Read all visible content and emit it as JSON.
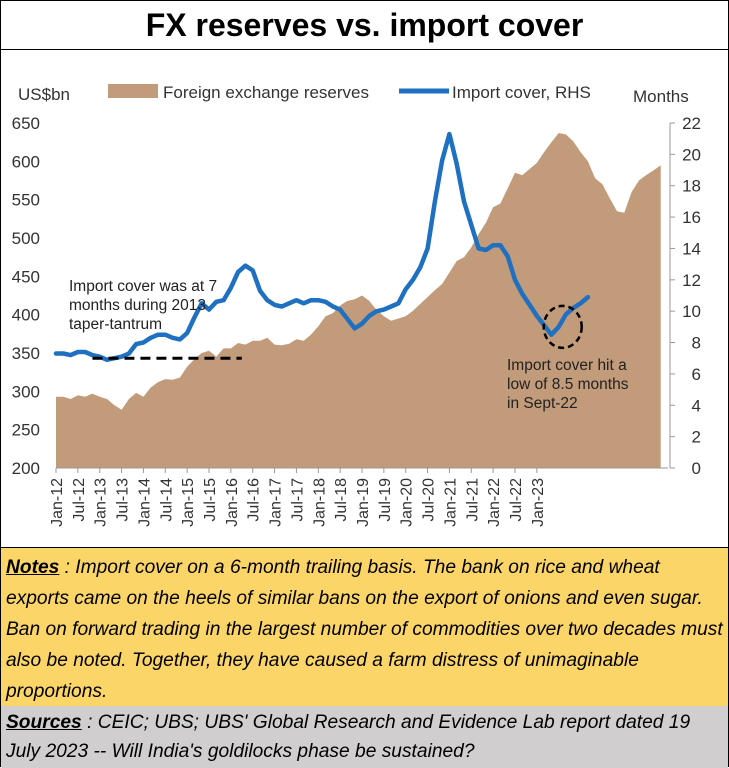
{
  "title": "FX reserves vs. import cover",
  "notes": {
    "label": "Notes",
    "text": " : Import cover on a 6-month trailing basis. The bank on rice and wheat exports came on the heels of similar bans on the export of onions and even sugar. Ban on forward trading in the largest number of commodities over two decades must also be noted.  Together, they have caused a farm distress of unimaginable proportions."
  },
  "sources": {
    "label": "Sources",
    "text": " : CEIC; UBS; UBS' Global Research and Evidence Lab report dated 19 July 2023 -- Will India's goldilocks phase be sustained?"
  },
  "colors": {
    "reserves": "#c29b7a",
    "import_cover": "#1f70c1"
  },
  "chart_data": {
    "type": "area+line",
    "y_left": {
      "label": "US$bn",
      "min": 200,
      "max": 650,
      "ticks": [
        200,
        250,
        300,
        350,
        400,
        450,
        500,
        550,
        600,
        650
      ]
    },
    "y_right": {
      "label": "Months",
      "min": 0,
      "max": 22,
      "ticks": [
        0,
        2,
        4,
        6,
        8,
        10,
        12,
        14,
        16,
        18,
        20,
        22
      ]
    },
    "x_ticks": [
      "Jan-12",
      "Jul-12",
      "Jan-13",
      "Jul-13",
      "Jan-14",
      "Jul-14",
      "Jan-15",
      "Jul-15",
      "Jan-16",
      "Jul-16",
      "Jan-17",
      "Jul-17",
      "Jan-18",
      "Jul-18",
      "Jan-19",
      "Jul-19",
      "Jan-20",
      "Jul-20",
      "Jan-21",
      "Jul-21",
      "Jan-22",
      "Jul-22",
      "Jan-23"
    ],
    "series": [
      {
        "name": "Foreign exchange reserves",
        "axis": "left",
        "type": "area",
        "points": [
          [
            0,
            293
          ],
          [
            2,
            293
          ],
          [
            4,
            290
          ],
          [
            6,
            295
          ],
          [
            8,
            293
          ],
          [
            10,
            297
          ],
          [
            12,
            293
          ],
          [
            14,
            290
          ],
          [
            16,
            282
          ],
          [
            18,
            276
          ],
          [
            20,
            290
          ],
          [
            22,
            298
          ],
          [
            24,
            293
          ],
          [
            26,
            305
          ],
          [
            28,
            312
          ],
          [
            30,
            316
          ],
          [
            32,
            315
          ],
          [
            34,
            318
          ],
          [
            36,
            332
          ],
          [
            38,
            342
          ],
          [
            40,
            350
          ],
          [
            42,
            353
          ],
          [
            44,
            345
          ],
          [
            46,
            356
          ],
          [
            48,
            356
          ],
          [
            50,
            363
          ],
          [
            52,
            361
          ],
          [
            54,
            366
          ],
          [
            56,
            366
          ],
          [
            58,
            370
          ],
          [
            60,
            361
          ],
          [
            62,
            360
          ],
          [
            64,
            362
          ],
          [
            66,
            368
          ],
          [
            68,
            366
          ],
          [
            70,
            374
          ],
          [
            72,
            385
          ],
          [
            74,
            398
          ],
          [
            76,
            402
          ],
          [
            78,
            412
          ],
          [
            80,
            418
          ],
          [
            82,
            420
          ],
          [
            84,
            425
          ],
          [
            86,
            418
          ],
          [
            88,
            406
          ],
          [
            90,
            398
          ],
          [
            92,
            392
          ],
          [
            94,
            395
          ],
          [
            96,
            398
          ],
          [
            98,
            405
          ],
          [
            100,
            414
          ],
          [
            102,
            423
          ],
          [
            104,
            432
          ],
          [
            106,
            440
          ],
          [
            108,
            455
          ],
          [
            110,
            470
          ],
          [
            112,
            475
          ],
          [
            114,
            488
          ],
          [
            116,
            505
          ],
          [
            118,
            520
          ],
          [
            120,
            540
          ],
          [
            122,
            545
          ],
          [
            124,
            565
          ],
          [
            126,
            585
          ],
          [
            128,
            582
          ],
          [
            130,
            590
          ],
          [
            132,
            598
          ],
          [
            134,
            612
          ],
          [
            136,
            625
          ],
          [
            138,
            637
          ],
          [
            140,
            635
          ],
          [
            142,
            626
          ],
          [
            144,
            612
          ],
          [
            146,
            600
          ],
          [
            148,
            578
          ],
          [
            150,
            570
          ],
          [
            152,
            552
          ],
          [
            154,
            535
          ],
          [
            156,
            533
          ],
          [
            158,
            560
          ],
          [
            160,
            575
          ],
          [
            162,
            582
          ],
          [
            164,
            588
          ],
          [
            166,
            595
          ]
        ]
      },
      {
        "name": "Import cover, RHS",
        "axis": "right",
        "type": "line",
        "points": [
          [
            0,
            7.3
          ],
          [
            2,
            7.3
          ],
          [
            4,
            7.2
          ],
          [
            6,
            7.4
          ],
          [
            8,
            7.4
          ],
          [
            10,
            7.2
          ],
          [
            12,
            7.1
          ],
          [
            14,
            6.9
          ],
          [
            16,
            7.0
          ],
          [
            18,
            7.1
          ],
          [
            20,
            7.3
          ],
          [
            22,
            7.9
          ],
          [
            24,
            8.0
          ],
          [
            26,
            8.3
          ],
          [
            28,
            8.5
          ],
          [
            30,
            8.5
          ],
          [
            32,
            8.3
          ],
          [
            34,
            8.2
          ],
          [
            36,
            8.6
          ],
          [
            38,
            9.6
          ],
          [
            40,
            10.5
          ],
          [
            42,
            10.1
          ],
          [
            44,
            10.6
          ],
          [
            46,
            10.7
          ],
          [
            48,
            11.5
          ],
          [
            50,
            12.5
          ],
          [
            52,
            12.9
          ],
          [
            54,
            12.6
          ],
          [
            56,
            11.3
          ],
          [
            58,
            10.7
          ],
          [
            60,
            10.4
          ],
          [
            62,
            10.3
          ],
          [
            64,
            10.5
          ],
          [
            66,
            10.7
          ],
          [
            68,
            10.5
          ],
          [
            70,
            10.7
          ],
          [
            72,
            10.7
          ],
          [
            74,
            10.6
          ],
          [
            76,
            10.3
          ],
          [
            78,
            10.1
          ],
          [
            80,
            9.5
          ],
          [
            82,
            8.9
          ],
          [
            84,
            9.2
          ],
          [
            86,
            9.7
          ],
          [
            88,
            10.0
          ],
          [
            90,
            10.1
          ],
          [
            92,
            10.3
          ],
          [
            94,
            10.5
          ],
          [
            96,
            11.4
          ],
          [
            98,
            12.0
          ],
          [
            100,
            12.8
          ],
          [
            102,
            14.0
          ],
          [
            104,
            17.0
          ],
          [
            106,
            19.6
          ],
          [
            108,
            21.3
          ],
          [
            110,
            19.4
          ],
          [
            112,
            17.0
          ],
          [
            114,
            15.5
          ],
          [
            116,
            14.0
          ],
          [
            118,
            13.9
          ],
          [
            120,
            14.2
          ],
          [
            122,
            14.2
          ],
          [
            124,
            13.5
          ],
          [
            126,
            12.0
          ],
          [
            128,
            11.1
          ],
          [
            130,
            10.4
          ],
          [
            132,
            9.7
          ],
          [
            134,
            9.1
          ],
          [
            136,
            8.5
          ],
          [
            138,
            9.0
          ],
          [
            140,
            9.8
          ],
          [
            142,
            10.2
          ],
          [
            144,
            10.5
          ],
          [
            146,
            10.9
          ]
        ]
      }
    ],
    "annotations": [
      {
        "text_lines": [
          "Import cover was at 7",
          "months during 2013",
          "taper-tantrum"
        ],
        "dashed_line_y_right": 7.0,
        "x_start": 10,
        "x_end": 51
      },
      {
        "text_lines": [
          "Import cover hit a",
          "low of 8.5 months",
          "in Sept-22"
        ],
        "circle_x": 138,
        "circle_y_right": 9
      }
    ]
  }
}
